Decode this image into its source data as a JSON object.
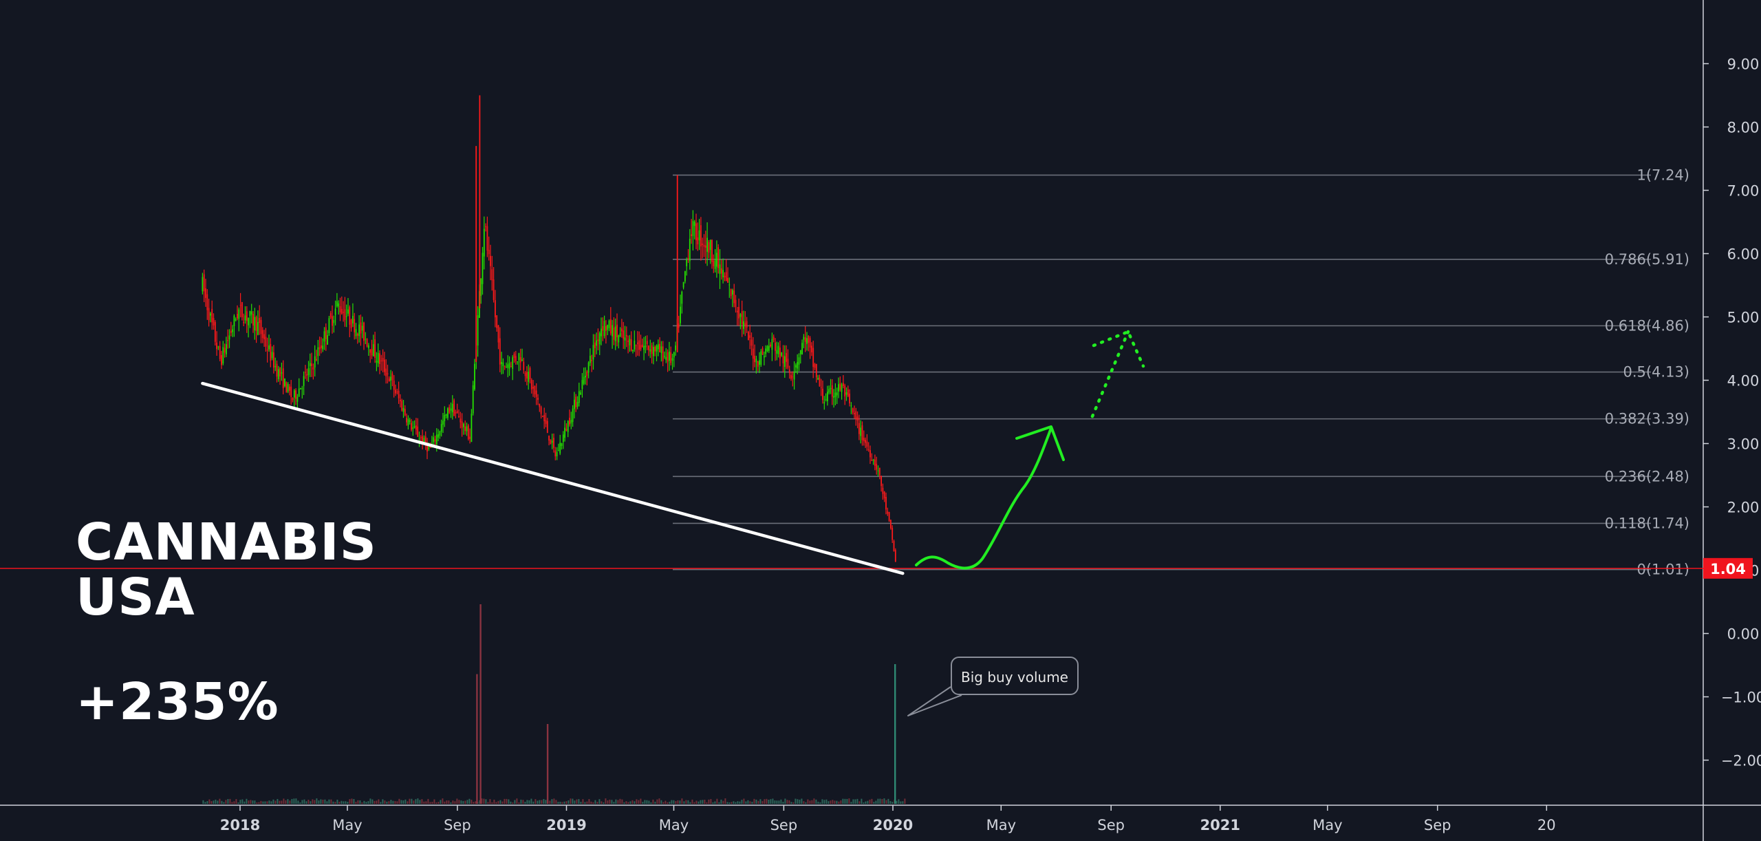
{
  "headline": {
    "line1": "CANNABIS",
    "line2": "USA",
    "gain": "+235%"
  },
  "annotation": {
    "text": "Big buy volume"
  },
  "colors": {
    "background": "#131722",
    "up_candle": "#26e000",
    "down_candle": "#ff1a1a",
    "fib_line": "#6b6f7a",
    "trendline": "#ffffff",
    "projection": "#22ee22",
    "price_tag": "#f0141e",
    "axis_text": "#d1d4dc"
  },
  "chart_data": {
    "type": "candlestick",
    "title": "",
    "xlabel": "",
    "ylabel": "",
    "x_ticks": [
      "2018",
      "May",
      "Sep",
      "2019",
      "May",
      "Sep",
      "2020",
      "May",
      "Sep",
      "2021",
      "May",
      "Sep",
      "20"
    ],
    "y_ticks": [
      "9.00",
      "8.00",
      "7.00",
      "6.00",
      "5.00",
      "4.00",
      "3.00",
      "2.00",
      "1.00",
      "0.00",
      "−1.00",
      "−2.00"
    ],
    "ylim": [
      -2.7,
      9.9
    ],
    "current_price": "1.04",
    "fib_levels": [
      {
        "label": "1(7.24)",
        "ratio": 1,
        "value": 7.24
      },
      {
        "label": "0.786(5.91)",
        "ratio": 0.786,
        "value": 5.91
      },
      {
        "label": "0.618(4.86)",
        "ratio": 0.618,
        "value": 4.86
      },
      {
        "label": "0.5(4.13)",
        "ratio": 0.5,
        "value": 4.13
      },
      {
        "label": "0.382(3.39)",
        "ratio": 0.382,
        "value": 3.39
      },
      {
        "label": "0.236(2.48)",
        "ratio": 0.236,
        "value": 2.48
      },
      {
        "label": "0.118(1.74)",
        "ratio": 0.118,
        "value": 1.74
      },
      {
        "label": "0(1.01)",
        "ratio": 0,
        "value": 1.01
      }
    ],
    "price_path": [
      [
        "2017-11-20",
        5.5
      ],
      [
        "2017-12-10",
        4.3
      ],
      [
        "2017-12-30",
        5.1
      ],
      [
        "2018-01-20",
        4.9
      ],
      [
        "2018-02-10",
        4.2
      ],
      [
        "2018-03-01",
        3.7
      ],
      [
        "2018-03-25",
        4.3
      ],
      [
        "2018-04-20",
        5.2
      ],
      [
        "2018-05-20",
        4.7
      ],
      [
        "2018-06-15",
        4.1
      ],
      [
        "2018-07-10",
        3.3
      ],
      [
        "2018-08-01",
        2.9
      ],
      [
        "2018-08-25",
        3.6
      ],
      [
        "2018-09-15",
        3.1
      ],
      [
        "2018-10-01",
        6.5
      ],
      [
        "2018-10-20",
        4.2
      ],
      [
        "2018-11-10",
        4.4
      ],
      [
        "2018-12-01",
        3.6
      ],
      [
        "2018-12-20",
        2.8
      ],
      [
        "2019-01-15",
        3.8
      ],
      [
        "2019-02-10",
        4.9
      ],
      [
        "2019-03-10",
        4.6
      ],
      [
        "2019-04-10",
        4.5
      ],
      [
        "2019-05-01",
        4.3
      ],
      [
        "2019-05-20",
        6.4
      ],
      [
        "2019-06-10",
        6.1
      ],
      [
        "2019-07-10",
        5.2
      ],
      [
        "2019-08-01",
        4.3
      ],
      [
        "2019-08-20",
        4.6
      ],
      [
        "2019-09-10",
        4.1
      ],
      [
        "2019-09-25",
        4.7
      ],
      [
        "2019-10-15",
        3.7
      ],
      [
        "2019-11-05",
        3.9
      ],
      [
        "2019-11-25",
        3.2
      ],
      [
        "2019-12-15",
        2.6
      ],
      [
        "2019-12-30",
        1.6
      ],
      [
        "2020-01-05",
        1.04
      ]
    ],
    "spikes": [
      {
        "date": "2018-09-26",
        "high": 8.5
      },
      {
        "date": "2018-09-22",
        "high": 7.7
      },
      {
        "date": "2019-05-05",
        "high": 7.24
      }
    ],
    "trendline": {
      "from": [
        "2017-11-20",
        3.95
      ],
      "to": [
        "2020-01-12",
        0.95
      ]
    },
    "volume_spikes": [
      {
        "date": "2018-09-26",
        "volume": 1.0
      },
      {
        "date": "2018-09-22",
        "volume": 0.65
      },
      {
        "date": "2018-12-10",
        "volume": 0.4
      },
      {
        "date": "2020-01-01",
        "volume": 0.7
      }
    ]
  }
}
